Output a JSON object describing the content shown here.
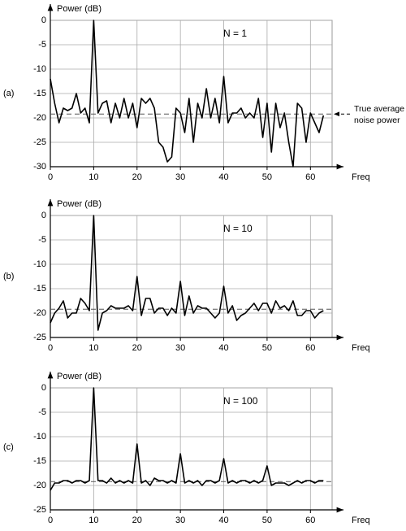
{
  "chart_data": [
    {
      "type": "line",
      "panel_label": "(a)",
      "subtitle": "N = 1",
      "y_label": "Power (dB)",
      "x_label": "Freq",
      "x": [
        0,
        1,
        2,
        3,
        4,
        5,
        6,
        7,
        8,
        9,
        10,
        11,
        12,
        13,
        14,
        15,
        16,
        17,
        18,
        19,
        20,
        21,
        22,
        23,
        24,
        25,
        26,
        27,
        28,
        29,
        30,
        31,
        32,
        33,
        34,
        35,
        36,
        37,
        38,
        39,
        40,
        41,
        42,
        43,
        44,
        45,
        46,
        47,
        48,
        49,
        50,
        51,
        52,
        53,
        54,
        55,
        56,
        57,
        58,
        59,
        60,
        61,
        62,
        63
      ],
      "series": [
        {
          "color": "#000000",
          "values": [
            -12,
            -17,
            -21,
            -18,
            -18.5,
            -18,
            -15,
            -19,
            -18,
            -21,
            0,
            -19,
            -17,
            -16.5,
            -21,
            -17,
            -20,
            -16,
            -20,
            -17,
            -22,
            -16,
            -17,
            -16,
            -18,
            -25,
            -26,
            -29,
            -28,
            -18,
            -19,
            -23,
            -16,
            -25,
            -17,
            -20,
            -14,
            -20,
            -16,
            -21,
            -11.5,
            -21,
            -19,
            -19,
            -18,
            -20,
            -19,
            -20,
            -16,
            -24,
            -17,
            -27,
            -17,
            -22,
            -19,
            -25,
            -30,
            -17,
            -18,
            -25,
            -19,
            -21,
            -23,
            -19.5
          ]
        }
      ],
      "reference_line": -19.2,
      "annotation_lines": [
        "True average",
        "noise power"
      ],
      "xlim": [
        0,
        65
      ],
      "xticks": [
        0,
        10,
        20,
        30,
        40,
        50,
        60
      ],
      "ylim": [
        -30,
        0
      ],
      "yticks": [
        -30,
        -25,
        -20,
        -15,
        -10,
        -5,
        0
      ],
      "grid": true
    },
    {
      "type": "line",
      "panel_label": "(b)",
      "subtitle": "N = 10",
      "y_label": "Power (dB)",
      "x_label": "Freq",
      "x": [
        0,
        1,
        2,
        3,
        4,
        5,
        6,
        7,
        8,
        9,
        10,
        11,
        12,
        13,
        14,
        15,
        16,
        17,
        18,
        19,
        20,
        21,
        22,
        23,
        24,
        25,
        26,
        27,
        28,
        29,
        30,
        31,
        32,
        33,
        34,
        35,
        36,
        37,
        38,
        39,
        40,
        41,
        42,
        43,
        44,
        45,
        46,
        47,
        48,
        49,
        50,
        51,
        52,
        53,
        54,
        55,
        56,
        57,
        58,
        59,
        60,
        61,
        62,
        63
      ],
      "series": [
        {
          "color": "#000000",
          "values": [
            -22,
            -20,
            -19,
            -17.5,
            -21,
            -20,
            -20,
            -17,
            -18,
            -19.5,
            0,
            -23.5,
            -20,
            -19.5,
            -18.5,
            -19,
            -19,
            -19,
            -18.5,
            -19.5,
            -12.5,
            -20.5,
            -17,
            -17,
            -20,
            -19,
            -19,
            -20.5,
            -19,
            -20,
            -13.5,
            -20.5,
            -16.5,
            -20,
            -18.5,
            -19,
            -19,
            -20,
            -21,
            -20,
            -14.5,
            -20,
            -18.5,
            -21.5,
            -20.5,
            -20,
            -19,
            -18,
            -19.5,
            -18,
            -18,
            -20,
            -17.5,
            -19,
            -18.5,
            -19.5,
            -17.5,
            -20.5,
            -20.5,
            -19.5,
            -19.5,
            -21,
            -20,
            -19.5
          ]
        }
      ],
      "reference_line": -19.2,
      "xlim": [
        0,
        65
      ],
      "xticks": [
        0,
        10,
        20,
        30,
        40,
        50,
        60
      ],
      "ylim": [
        -25,
        0
      ],
      "yticks": [
        -25,
        -20,
        -15,
        -10,
        -5,
        0
      ],
      "grid": true
    },
    {
      "type": "line",
      "panel_label": "(c)",
      "subtitle": "N = 100",
      "y_label": "Power (dB)",
      "x_label": "Freq",
      "x": [
        0,
        1,
        2,
        3,
        4,
        5,
        6,
        7,
        8,
        9,
        10,
        11,
        12,
        13,
        14,
        15,
        16,
        17,
        18,
        19,
        20,
        21,
        22,
        23,
        24,
        25,
        26,
        27,
        28,
        29,
        30,
        31,
        32,
        33,
        34,
        35,
        36,
        37,
        38,
        39,
        40,
        41,
        42,
        43,
        44,
        45,
        46,
        47,
        48,
        49,
        50,
        51,
        52,
        53,
        54,
        55,
        56,
        57,
        58,
        59,
        60,
        61,
        62,
        63
      ],
      "series": [
        {
          "color": "#000000",
          "values": [
            -21,
            -19.5,
            -19.5,
            -19,
            -19,
            -19.5,
            -19,
            -19,
            -19.5,
            -19,
            0,
            -19,
            -19,
            -19.5,
            -18.5,
            -19.5,
            -19,
            -19.5,
            -19,
            -19.5,
            -11.5,
            -19.5,
            -19,
            -20,
            -18.5,
            -19,
            -19,
            -19.5,
            -19,
            -19.5,
            -13.5,
            -19.5,
            -19,
            -19.5,
            -19,
            -20,
            -19,
            -19,
            -19.5,
            -19,
            -14.5,
            -19.5,
            -19,
            -19.5,
            -19,
            -19,
            -19.5,
            -19,
            -19.5,
            -19,
            -16,
            -20,
            -19.5,
            -19.5,
            -19.5,
            -20,
            -19.5,
            -19,
            -19.5,
            -19,
            -19,
            -19.5,
            -19,
            -19
          ]
        }
      ],
      "reference_line": -19.2,
      "xlim": [
        0,
        65
      ],
      "xticks": [
        0,
        10,
        20,
        30,
        40,
        50,
        60
      ],
      "ylim": [
        -25,
        0
      ],
      "yticks": [
        -25,
        -20,
        -15,
        -10,
        -5,
        0
      ],
      "grid": true
    }
  ]
}
